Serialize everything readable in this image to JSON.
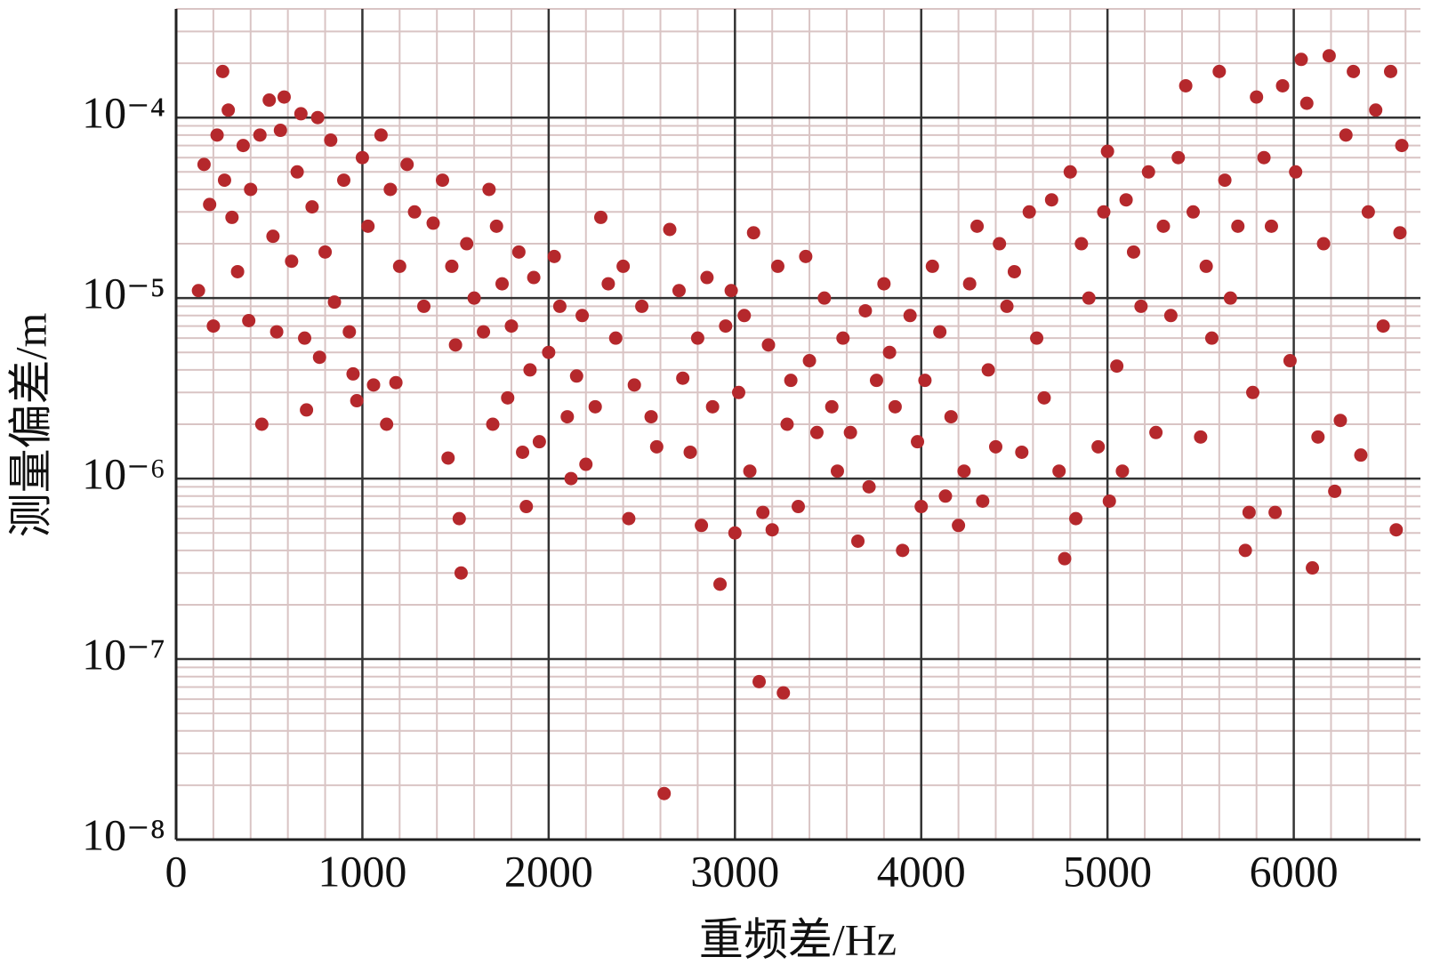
{
  "chart_data": {
    "type": "scatter",
    "x_label": "重频差/Hz",
    "y_label": "测量偏差/m",
    "xlim": [
      0,
      6680
    ],
    "ylim": [
      1e-08,
      0.0004
    ],
    "ylog": true,
    "grid": true,
    "color": "#b5282c",
    "xticks": [
      0,
      1000,
      2000,
      3000,
      4000,
      5000,
      6000
    ],
    "yticks": [
      {
        "value": 1e-08,
        "label": "10⁻⁸"
      },
      {
        "value": 1e-07,
        "label": "10⁻⁷"
      },
      {
        "value": 1e-06,
        "label": "10⁻⁶"
      },
      {
        "value": 1e-05,
        "label": "10⁻⁵"
      },
      {
        "value": 0.0001,
        "label": "10⁻⁴"
      }
    ],
    "xminorticks": [
      200,
      400,
      600,
      800,
      1200,
      1400,
      1600,
      1800,
      2200,
      2400,
      2600,
      2800,
      3200,
      3400,
      3600,
      3800,
      4200,
      4400,
      4600,
      4800,
      5200,
      5400,
      5600,
      5800,
      6200,
      6400,
      6600
    ],
    "yminorticks": [
      2e-08,
      3e-08,
      4e-08,
      5e-08,
      6e-08,
      7e-08,
      8e-08,
      9e-08,
      2e-07,
      3e-07,
      4e-07,
      5e-07,
      6e-07,
      7e-07,
      8e-07,
      9e-07,
      2e-06,
      3e-06,
      4e-06,
      5e-06,
      6e-06,
      7e-06,
      8e-06,
      9e-06,
      2e-05,
      3e-05,
      4e-05,
      5e-05,
      6e-05,
      7e-05,
      8e-05,
      9e-05,
      0.0002,
      0.0003,
      0.0004
    ],
    "x": [
      120,
      150,
      180,
      200,
      220,
      250,
      260,
      280,
      300,
      330,
      360,
      390,
      400,
      450,
      460,
      500,
      520,
      540,
      560,
      580,
      620,
      650,
      670,
      690,
      700,
      730,
      760,
      770,
      800,
      830,
      850,
      900,
      930,
      950,
      970,
      1000,
      1030,
      1060,
      1100,
      1130,
      1150,
      1180,
      1200,
      1240,
      1280,
      1330,
      1380,
      1430,
      1460,
      1480,
      1500,
      1520,
      1530,
      1560,
      1600,
      1650,
      1680,
      1700,
      1720,
      1750,
      1780,
      1800,
      1840,
      1860,
      1880,
      1900,
      1920,
      1950,
      2000,
      2030,
      2060,
      2100,
      2120,
      2150,
      2180,
      2200,
      2250,
      2280,
      2320,
      2360,
      2400,
      2430,
      2460,
      2500,
      2550,
      2580,
      2620,
      2650,
      2700,
      2720,
      2760,
      2800,
      2820,
      2850,
      2880,
      2920,
      2950,
      2980,
      3000,
      3020,
      3050,
      3080,
      3100,
      3130,
      3150,
      3180,
      3200,
      3230,
      3260,
      3280,
      3300,
      3340,
      3380,
      3400,
      3440,
      3480,
      3520,
      3550,
      3580,
      3620,
      3660,
      3700,
      3720,
      3760,
      3800,
      3830,
      3860,
      3900,
      3940,
      3980,
      4000,
      4020,
      4060,
      4100,
      4130,
      4160,
      4200,
      4230,
      4260,
      4300,
      4330,
      4360,
      4400,
      4420,
      4460,
      4500,
      4540,
      4580,
      4620,
      4660,
      4700,
      4740,
      4770,
      4800,
      4830,
      4860,
      4900,
      4950,
      4980,
      5000,
      5010,
      5050,
      5080,
      5100,
      5140,
      5180,
      5220,
      5260,
      5300,
      5340,
      5380,
      5420,
      5460,
      5500,
      5530,
      5560,
      5600,
      5630,
      5660,
      5700,
      5740,
      5760,
      5780,
      5800,
      5840,
      5880,
      5900,
      5940,
      5980,
      6010,
      6040,
      6070,
      6100,
      6130,
      6160,
      6190,
      6220,
      6250,
      6280,
      6320,
      6360,
      6400,
      6440,
      6480,
      6520,
      6550,
      6570,
      6580
    ],
    "values": [
      1.1e-05,
      5.5e-05,
      3.3e-05,
      7e-06,
      8e-05,
      0.00018,
      4.5e-05,
      0.00011,
      2.8e-05,
      1.4e-05,
      7e-05,
      7.5e-06,
      4e-05,
      8e-05,
      2e-06,
      0.000125,
      2.2e-05,
      6.5e-06,
      8.5e-05,
      0.00013,
      1.6e-05,
      5e-05,
      0.000105,
      6e-06,
      2.4e-06,
      3.2e-05,
      0.0001,
      4.7e-06,
      1.8e-05,
      7.5e-05,
      9.5e-06,
      4.5e-05,
      6.5e-06,
      3.8e-06,
      2.7e-06,
      6e-05,
      2.5e-05,
      3.3e-06,
      8e-05,
      2e-06,
      4e-05,
      3.4e-06,
      1.5e-05,
      5.5e-05,
      3e-05,
      9e-06,
      2.6e-05,
      4.5e-05,
      1.3e-06,
      1.5e-05,
      5.5e-06,
      6e-07,
      3e-07,
      2e-05,
      1e-05,
      6.5e-06,
      4e-05,
      2e-06,
      2.5e-05,
      1.2e-05,
      2.8e-06,
      7e-06,
      1.8e-05,
      1.4e-06,
      7e-07,
      4e-06,
      1.3e-05,
      1.6e-06,
      5e-06,
      1.7e-05,
      9e-06,
      2.2e-06,
      1e-06,
      3.7e-06,
      8e-06,
      1.2e-06,
      2.5e-06,
      2.8e-05,
      1.2e-05,
      6e-06,
      1.5e-05,
      6e-07,
      3.3e-06,
      9e-06,
      2.2e-06,
      1.5e-06,
      1.8e-08,
      2.4e-05,
      1.1e-05,
      3.6e-06,
      1.4e-06,
      6e-06,
      5.5e-07,
      1.3e-05,
      2.5e-06,
      2.6e-07,
      7e-06,
      1.1e-05,
      5e-07,
      3e-06,
      8e-06,
      1.1e-06,
      2.3e-05,
      7.5e-08,
      6.5e-07,
      5.5e-06,
      5.2e-07,
      1.5e-05,
      6.5e-08,
      2e-06,
      3.5e-06,
      7e-07,
      1.7e-05,
      4.5e-06,
      1.8e-06,
      1e-05,
      2.5e-06,
      1.1e-06,
      6e-06,
      1.8e-06,
      4.5e-07,
      8.5e-06,
      9e-07,
      3.5e-06,
      1.2e-05,
      5e-06,
      2.5e-06,
      4e-07,
      8e-06,
      1.6e-06,
      7e-07,
      3.5e-06,
      1.5e-05,
      6.5e-06,
      8e-07,
      2.2e-06,
      5.5e-07,
      1.1e-06,
      1.2e-05,
      2.5e-05,
      7.5e-07,
      4e-06,
      1.5e-06,
      2e-05,
      9e-06,
      1.4e-05,
      1.4e-06,
      3e-05,
      6e-06,
      2.8e-06,
      3.5e-05,
      1.1e-06,
      3.6e-07,
      5e-05,
      6e-07,
      2e-05,
      1e-05,
      1.5e-06,
      3e-05,
      6.5e-05,
      7.5e-07,
      4.2e-06,
      1.1e-06,
      3.5e-05,
      1.8e-05,
      9e-06,
      5e-05,
      1.8e-06,
      2.5e-05,
      8e-06,
      6e-05,
      0.00015,
      3e-05,
      1.7e-06,
      1.5e-05,
      6e-06,
      0.00018,
      4.5e-05,
      1e-05,
      2.5e-05,
      4e-07,
      6.5e-07,
      3e-06,
      0.00013,
      6e-05,
      2.5e-05,
      6.5e-07,
      0.00015,
      4.5e-06,
      5e-05,
      0.00021,
      0.00012,
      3.2e-07,
      1.7e-06,
      2e-05,
      0.00022,
      8.5e-07,
      2.1e-06,
      8e-05,
      0.00018,
      1.35e-06,
      3e-05,
      0.00011,
      7e-06,
      0.00018,
      5.2e-07,
      2.3e-05,
      7e-05
    ]
  }
}
